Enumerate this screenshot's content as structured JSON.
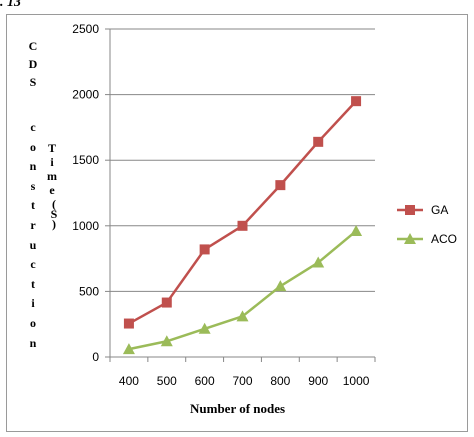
{
  "figure_label": ". 13",
  "chart_data": {
    "type": "line",
    "x": [
      400,
      500,
      600,
      700,
      800,
      900,
      1000
    ],
    "xlabel": "Number of nodes",
    "ylabel_parts": [
      "CDS",
      "construction",
      "Time",
      "(S)"
    ],
    "ylim": [
      0,
      2500
    ],
    "yticks": [
      0,
      500,
      1000,
      1500,
      2000,
      2500
    ],
    "grid": true,
    "legend_position": "right",
    "series": [
      {
        "name": "GA",
        "color": "#c0504d",
        "marker": "square",
        "values": [
          255,
          415,
          820,
          1000,
          1310,
          1640,
          1950
        ]
      },
      {
        "name": "ACO",
        "color": "#9bbb59",
        "marker": "triangle",
        "values": [
          60,
          120,
          215,
          310,
          540,
          720,
          960
        ]
      }
    ]
  }
}
